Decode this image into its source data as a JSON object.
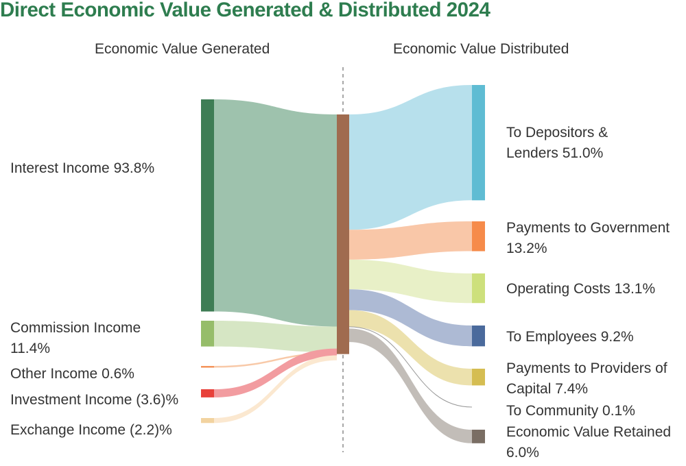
{
  "title": "Direct Economic Value Generated & Distributed 2024",
  "chart_data": {
    "type": "sankey",
    "left_heading": "Economic Value Generated",
    "right_heading": "Economic Value Distributed",
    "sources": [
      {
        "name": "Interest Income",
        "value_label": "93.8%",
        "value": 93.8,
        "color": "#3e7d55",
        "flow_color": "#9ec2ad"
      },
      {
        "name": "Commission Income",
        "value_label": "11.4%",
        "value": 11.4,
        "color": "#96bd6a",
        "flow_color": "#d6e6c4"
      },
      {
        "name": "Other Income",
        "value_label": "0.6%",
        "value": 0.6,
        "color": "#f4935a",
        "flow_color": "#f8c9a8"
      },
      {
        "name": "Investment Income",
        "value_label": "(3.6)%",
        "value": -3.6,
        "color": "#e8413a",
        "flow_color": "#f29ca0"
      },
      {
        "name": "Exchange Income",
        "value_label": "(2.2)%",
        "value": -2.2,
        "color": "#f2d3a0",
        "flow_color": "#fbe8d0"
      }
    ],
    "targets": [
      {
        "name": "To Depositors & Lenders",
        "value_label": "51.0%",
        "value": 51.0,
        "color": "#5fbcd3",
        "flow_color": "#b7e0ec"
      },
      {
        "name": "Payments to Government",
        "value_label": "13.2%",
        "value": 13.2,
        "color": "#f68b4a",
        "flow_color": "#f9c7a8"
      },
      {
        "name": "Operating Costs",
        "value_label": "13.1%",
        "value": 13.1,
        "color": "#cde07c",
        "flow_color": "#e8f0c7"
      },
      {
        "name": "To Employees",
        "value_label": "9.2%",
        "value": 9.2,
        "color": "#4a6a9c",
        "flow_color": "#adbad4"
      },
      {
        "name": "Payments to Providers of Capital",
        "value_label": "7.4%",
        "value": 7.4,
        "color": "#d5bd52",
        "flow_color": "#ece1ad"
      },
      {
        "name": "To Community",
        "value_label": "0.1%",
        "value": 0.1,
        "color": "#888888",
        "flow_color": "#999999"
      },
      {
        "name": "Economic Value Retained",
        "value_label": "6.0%",
        "value": 6.0,
        "color": "#7a6e64",
        "flow_color": "#c2bdb8"
      }
    ],
    "center_node_color": "#a06b4f",
    "divider": "dashed"
  }
}
